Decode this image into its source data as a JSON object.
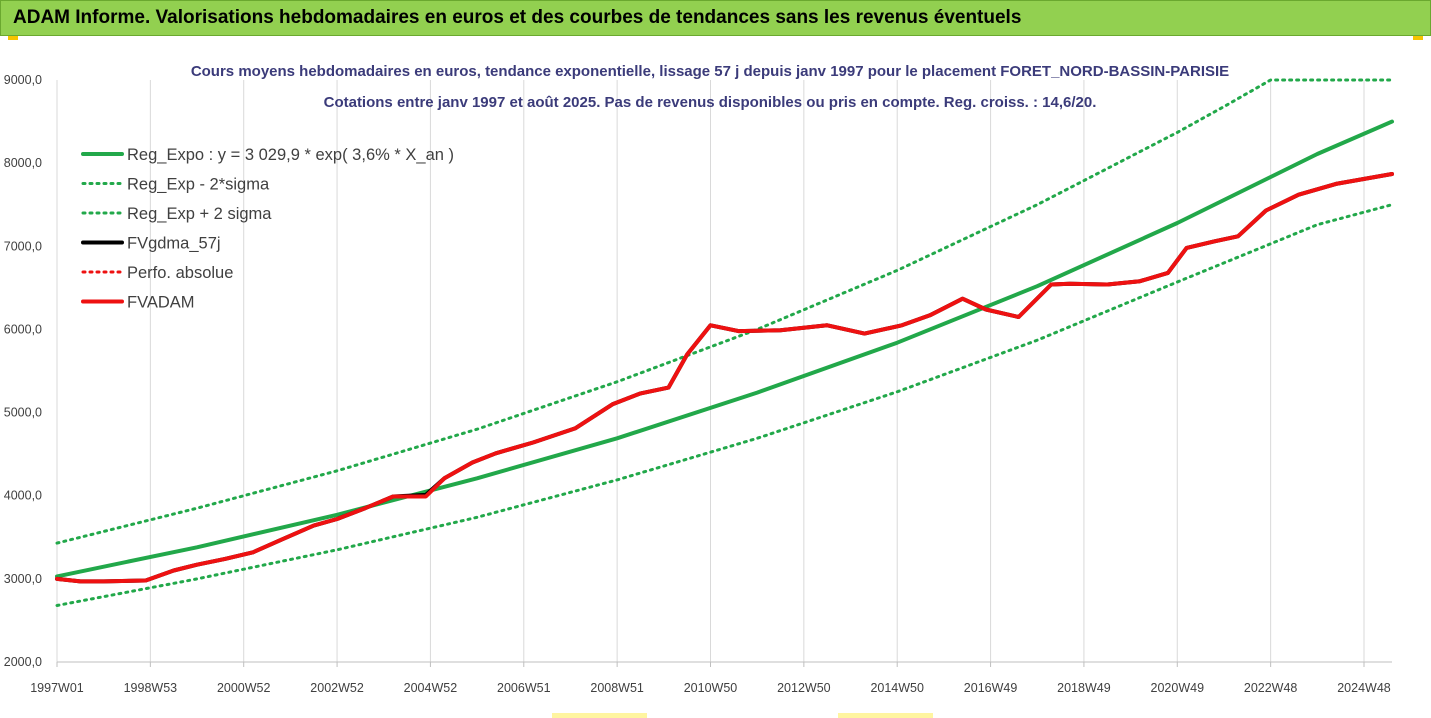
{
  "header": {
    "title": "ADAM Informe. Valorisations hebdomadaires en euros et des courbes de tendances sans les revenus éventuels"
  },
  "chart_data": {
    "type": "line",
    "title": "Cours moyens hebdomadaires en euros, tendance exponentielle, lissage 57 j depuis janv 1997 pour le placement FORET_NORD-BASSIN-PARISIE",
    "subtitle": "Cotations entre janv 1997 et août 2025. Pas de revenus disponibles ou pris en compte. Reg. croiss. : 14,6/20.",
    "xlabel": "",
    "ylabel": "",
    "ylim": [
      2000,
      9000
    ],
    "yticks": [
      2000,
      3000,
      4000,
      5000,
      6000,
      7000,
      8000,
      9000
    ],
    "ytick_labels": [
      "2000,0",
      "3000,0",
      "4000,0",
      "5000,0",
      "6000,0",
      "7000,0",
      "8000,0",
      "9000,0"
    ],
    "xlim": [
      1997.0,
      2025.6
    ],
    "xticks": [
      1997.0,
      1999.0,
      2001.0,
      2003.0,
      2005.0,
      2007.0,
      2009.0,
      2011.0,
      2013.0,
      2015.0,
      2017.0,
      2019.0,
      2021.0,
      2023.0,
      2025.0
    ],
    "xtick_labels": [
      "1997W01",
      "1998W53",
      "2000W52",
      "2002W52",
      "2004W52",
      "2006W51",
      "2008W51",
      "2010W50",
      "2012W50",
      "2014W50",
      "2016W49",
      "2018W49",
      "2020W49",
      "2022W48",
      "2024W48"
    ],
    "grid": "vertical",
    "legend_position": "top-left",
    "series": [
      {
        "name": "Reg_Expo : y = 3 029,9 * exp( 3,6% *  X_an )",
        "color": "#22a84a",
        "style": "solid",
        "x": [
          1997.0,
          2000.0,
          2003.0,
          2006.0,
          2009.0,
          2012.0,
          2015.0,
          2018.0,
          2021.0,
          2024.0,
          2025.6
        ],
        "values": [
          3030,
          3380,
          3770,
          4210,
          4690,
          5240,
          5840,
          6520,
          7280,
          8110,
          8500
        ]
      },
      {
        "name": "Reg_Exp - 2*sigma",
        "color": "#22a84a",
        "style": "dotted",
        "x": [
          1997.0,
          2000.0,
          2003.0,
          2006.0,
          2009.0,
          2012.0,
          2015.0,
          2018.0,
          2021.0,
          2024.0,
          2025.6
        ],
        "values": [
          2680,
          3000,
          3350,
          3740,
          4190,
          4690,
          5250,
          5870,
          6570,
          7260,
          7500
        ]
      },
      {
        "name": "Reg_Exp + 2 sigma",
        "color": "#22a84a",
        "style": "dotted",
        "x": [
          1997.0,
          2000.0,
          2003.0,
          2006.0,
          2009.0,
          2012.0,
          2015.0,
          2018.0,
          2021.0,
          2022.0,
          2023.0,
          2025.6
        ],
        "values": [
          3430,
          3850,
          4300,
          4800,
          5370,
          6000,
          6710,
          7500,
          8370,
          8680,
          9000,
          9000
        ]
      },
      {
        "name": "FVgdma_57j",
        "color": "#000000",
        "style": "solid",
        "x": [
          1997.0,
          1997.5,
          1998.0,
          1998.9,
          1999.5,
          2000.0,
          2000.6,
          2001.2,
          2001.8,
          2002.5,
          2003.0,
          2003.6,
          2004.2,
          2004.9,
          2005.3,
          2005.9,
          2006.4,
          2007.2,
          2008.1,
          2008.9,
          2009.5,
          2010.1,
          2010.5,
          2011.0,
          2011.6,
          2012.5,
          2013.5,
          2014.3,
          2015.1,
          2015.7,
          2016.4,
          2016.9,
          2017.6,
          2018.3,
          2018.7,
          2019.5,
          2020.2,
          2020.8,
          2021.2,
          2021.8,
          2022.3,
          2022.9,
          2023.6,
          2024.4,
          2025.6
        ],
        "values": [
          3000,
          2970,
          2970,
          2980,
          3100,
          3170,
          3240,
          3320,
          3470,
          3640,
          3720,
          3850,
          3990,
          4010,
          4210,
          4400,
          4510,
          4640,
          4810,
          5100,
          5230,
          5300,
          5700,
          6050,
          5980,
          5990,
          6050,
          5950,
          6050,
          6170,
          6370,
          6240,
          6150,
          6540,
          6550,
          6540,
          6580,
          6680,
          6980,
          7060,
          7120,
          7430,
          7620,
          7750,
          7870
        ]
      },
      {
        "name": "Perfo. absolue",
        "color": "#ee1111",
        "style": "dotted",
        "x": [],
        "values": []
      },
      {
        "name": "FVADAM",
        "color": "#ee1111",
        "style": "solid",
        "x": [
          1997.0,
          1997.5,
          1998.0,
          1998.9,
          1999.5,
          2000.0,
          2000.6,
          2001.2,
          2001.8,
          2002.5,
          2003.0,
          2003.6,
          2004.2,
          2004.9,
          2005.3,
          2005.9,
          2006.4,
          2007.2,
          2008.1,
          2008.9,
          2009.5,
          2010.1,
          2010.5,
          2011.0,
          2011.6,
          2012.5,
          2013.5,
          2014.3,
          2015.1,
          2015.7,
          2016.4,
          2016.9,
          2017.6,
          2018.3,
          2018.7,
          2019.5,
          2020.2,
          2020.8,
          2021.2,
          2021.8,
          2022.3,
          2022.9,
          2023.6,
          2024.4,
          2025.6
        ],
        "values": [
          3000,
          2970,
          2970,
          2980,
          3100,
          3170,
          3240,
          3320,
          3470,
          3640,
          3720,
          3850,
          3990,
          3990,
          4210,
          4400,
          4510,
          4640,
          4810,
          5100,
          5230,
          5300,
          5700,
          6050,
          5980,
          5990,
          6050,
          5950,
          6050,
          6170,
          6370,
          6240,
          6150,
          6540,
          6550,
          6540,
          6580,
          6680,
          6980,
          7060,
          7120,
          7430,
          7620,
          7750,
          7870
        ]
      }
    ]
  }
}
